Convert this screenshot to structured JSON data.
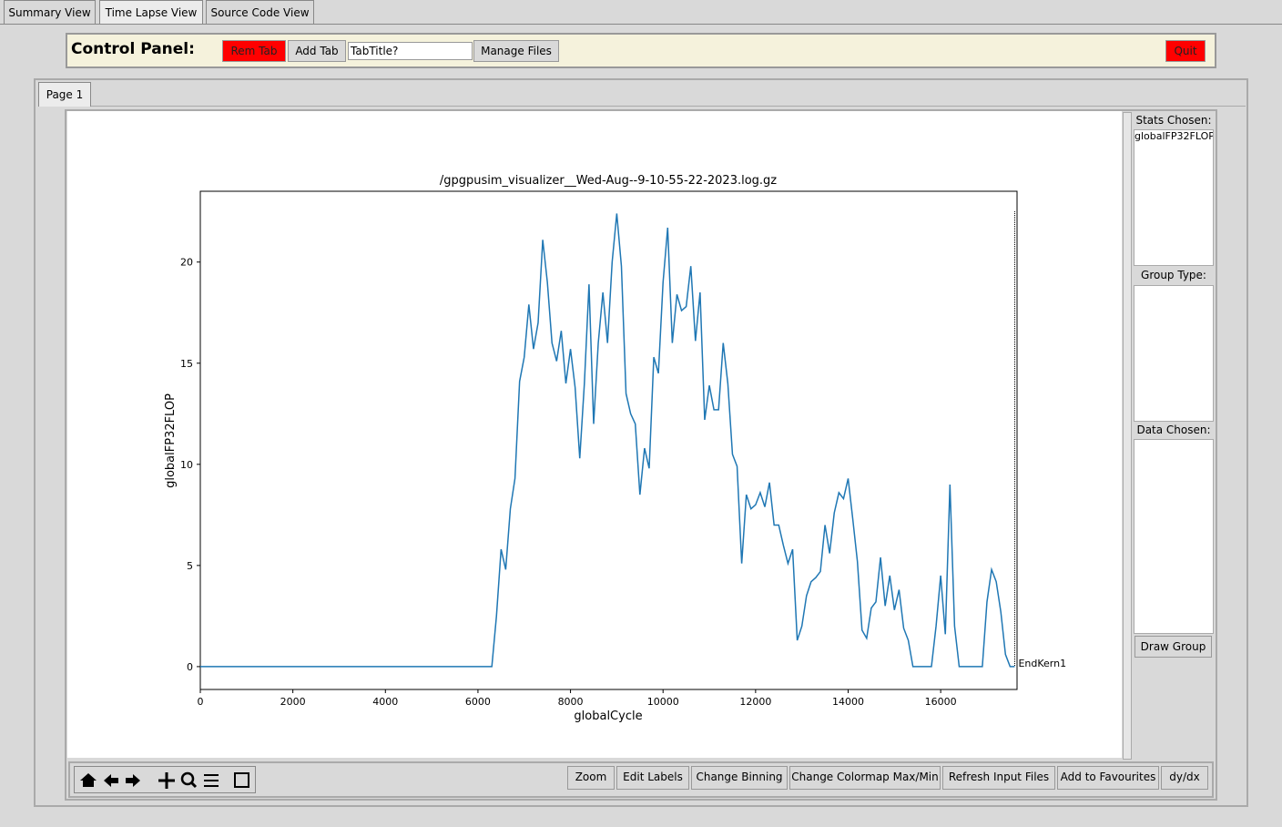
{
  "window_tabs": [
    "Summary View",
    "Time Lapse View",
    "Source Code View"
  ],
  "control_panel": {
    "label": "Control Panel:",
    "rem_tab": "Rem Tab",
    "add_tab": "Add Tab",
    "tab_title_entry": "TabTitle?",
    "manage_files": "Manage Files",
    "quit": "Quit"
  },
  "page_tab": "Page 1",
  "side_panel": {
    "stats_chosen": "Stats Chosen:",
    "stats_item": "globalFP32FLOP",
    "group_type": "Group Type:",
    "data_chosen": "Data Chosen:",
    "draw_group": "Draw Group"
  },
  "toolbar_buttons": [
    "Zoom",
    "Edit Labels",
    "Change Binning",
    "Change Colormap Max/Min",
    "Refresh Input Files",
    "Add to Favourites",
    "dy/dx"
  ],
  "chart_data": {
    "type": "line",
    "title": "/gpgpusim_visualizer__Wed-Aug--9-10-55-22-2023.log.gz",
    "x_label": "globalCycle",
    "y_label": "globalFP32FLOP",
    "color": "#1f77b4",
    "x": [
      0,
      6300,
      6400,
      6500,
      6600,
      6700,
      6800,
      6900,
      7000,
      7100,
      7200,
      7300,
      7400,
      7500,
      7600,
      7700,
      7800,
      7900,
      8000,
      8100,
      8200,
      8300,
      8400,
      8500,
      8600,
      8700,
      8800,
      8900,
      9000,
      9100,
      9200,
      9300,
      9400,
      9500,
      9600,
      9700,
      9800,
      9900,
      10000,
      10100,
      10200,
      10300,
      10400,
      10500,
      10600,
      10700,
      10800,
      10900,
      11000,
      11100,
      11200,
      11300,
      11400,
      11500,
      11600,
      11700,
      11800,
      11900,
      12000,
      12100,
      12200,
      12300,
      12400,
      12500,
      12600,
      12700,
      12800,
      12900,
      13000,
      13100,
      13200,
      13300,
      13400,
      13500,
      13600,
      13700,
      13800,
      13900,
      14000,
      14100,
      14200,
      14300,
      14400,
      14500,
      14600,
      14700,
      14800,
      14900,
      15000,
      15100,
      15200,
      15300,
      15400,
      15500,
      15600,
      15700,
      15800,
      15900,
      16000,
      16100,
      16200,
      16300,
      16400,
      16500,
      16600,
      16700,
      16800,
      16900,
      17000,
      17100,
      17200,
      17300,
      17400,
      17500,
      17600
    ],
    "values": [
      0,
      0,
      2.5,
      5.8,
      4.8,
      7.8,
      9.3,
      14.1,
      15.3,
      17.9,
      15.7,
      17.0,
      21.1,
      19.0,
      16.0,
      15.1,
      16.6,
      14.0,
      15.7,
      13.8,
      10.3,
      14.0,
      18.9,
      12.0,
      16.0,
      18.5,
      16.0,
      20.0,
      22.4,
      19.8,
      13.5,
      12.5,
      12.0,
      8.5,
      10.8,
      9.8,
      15.3,
      14.5,
      19.0,
      21.7,
      16.0,
      18.4,
      17.6,
      17.8,
      19.8,
      16.1,
      18.5,
      12.2,
      13.9,
      12.7,
      12.7,
      16.0,
      14.0,
      10.5,
      9.9,
      5.1,
      8.5,
      7.8,
      8.0,
      8.6,
      7.9,
      9.1,
      7.0,
      7.0,
      6.0,
      5.1,
      5.8,
      1.3,
      2.0,
      3.5,
      4.2,
      4.4,
      4.7,
      7.0,
      5.6,
      7.6,
      8.6,
      8.3,
      9.3,
      7.3,
      5.2,
      1.8,
      1.4,
      2.9,
      3.2,
      5.4,
      3.0,
      4.5,
      2.8,
      3.8,
      1.9,
      1.3,
      0,
      0,
      0,
      0,
      0,
      2.0,
      4.5,
      1.6,
      9.0,
      2.0,
      0,
      0,
      0,
      0,
      0,
      0,
      3.2,
      4.8,
      4.2,
      2.7,
      0.6,
      0,
      0
    ],
    "xlim": [
      0,
      17650
    ],
    "ylim": [
      -1.13,
      23.5
    ],
    "xticks": [
      0,
      2000,
      4000,
      6000,
      8000,
      10000,
      12000,
      14000,
      16000
    ],
    "yticks": [
      0,
      5,
      10,
      15,
      20
    ],
    "annotations": [
      {
        "x": 17600,
        "text": "EndKern1"
      }
    ]
  }
}
